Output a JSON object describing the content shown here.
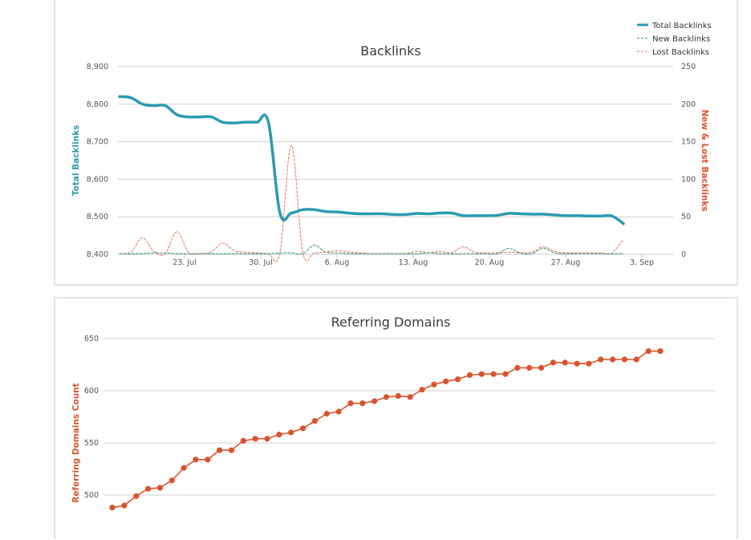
{
  "chart_data": [
    {
      "type": "line",
      "title": "Backlinks",
      "ylabel": "Total Backlinks",
      "y2label": "New & Lost Backlinks",
      "ylim": [
        8400,
        8900
      ],
      "y2lim": [
        0,
        250
      ],
      "yticks": [
        "8,400",
        "8,500",
        "8,600",
        "8,700",
        "8,800",
        "8,900"
      ],
      "y2ticks": [
        "0",
        "50",
        "100",
        "150",
        "200",
        "250"
      ],
      "xticks": [
        "23. Jul",
        "30. Jul",
        "6. Aug",
        "13. Aug",
        "20. Aug",
        "27. Aug",
        "3. Sep"
      ],
      "legend_position": "top-right",
      "series": [
        {
          "name": "Total Backlinks",
          "axis": "left",
          "color": "#2b9bb2",
          "values": [
            8820,
            8817,
            8800,
            8796,
            8796,
            8772,
            8766,
            8766,
            8766,
            8752,
            8750,
            8752,
            8752,
            8752,
            8511,
            8510,
            8519,
            8519,
            8514,
            8513,
            8510,
            8508,
            8508,
            8508,
            8506,
            8506,
            8509,
            8508,
            8510,
            8510,
            8503,
            8503,
            8503,
            8504,
            8509,
            8508,
            8507,
            8507,
            8505,
            8503,
            8503,
            8502,
            8502,
            8502,
            8482
          ]
        },
        {
          "name": "New Backlinks",
          "axis": "right",
          "color": "#3a9a6a",
          "values": [
            1,
            1,
            1,
            2,
            2,
            1,
            1,
            1,
            1,
            1,
            1,
            1,
            1,
            1,
            2,
            2,
            1,
            12,
            3,
            2,
            1,
            1,
            1,
            1,
            1,
            1,
            1,
            2,
            1,
            1,
            1,
            1,
            1,
            1,
            8,
            2,
            1,
            8,
            2,
            1,
            1,
            1,
            1,
            1,
            1
          ]
        },
        {
          "name": "Lost Backlinks",
          "axis": "right",
          "color": "#e07a5f",
          "values": [
            1,
            3,
            22,
            4,
            1,
            30,
            3,
            1,
            3,
            15,
            5,
            3,
            2,
            1,
            2,
            145,
            3,
            2,
            3,
            5,
            3,
            2,
            1,
            1,
            1,
            1,
            4,
            2,
            4,
            2,
            10,
            3,
            2,
            2,
            3,
            2,
            3,
            10,
            4,
            2,
            2,
            2,
            2,
            2,
            20
          ]
        }
      ]
    },
    {
      "type": "line",
      "title": "Referring Domains",
      "ylabel": "Referring Domains Count",
      "ylim": [
        477,
        650
      ],
      "yticks": [
        "500",
        "550",
        "600",
        "650"
      ],
      "series": [
        {
          "name": "",
          "color": "#d9532c",
          "values": [
            488,
            490,
            499,
            506,
            507,
            514,
            526,
            534,
            534,
            543,
            543,
            552,
            554,
            554,
            558,
            560,
            564,
            571,
            578,
            580,
            588,
            588,
            590,
            594,
            595,
            594,
            601,
            606,
            609,
            611,
            615,
            616,
            616,
            616,
            622,
            622,
            622,
            627,
            627,
            626,
            626,
            630,
            630,
            630,
            630,
            638,
            638
          ]
        }
      ]
    }
  ]
}
